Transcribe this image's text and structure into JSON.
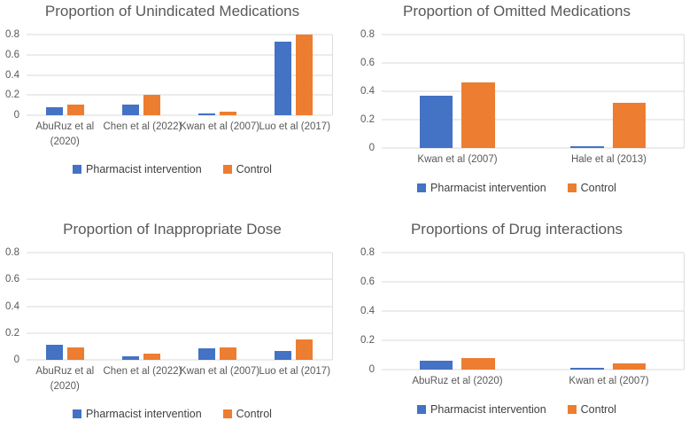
{
  "chart_data": [
    {
      "type": "bar",
      "title": "Proportion of Unindicated Medications",
      "categories": [
        "AbuRuz et al (2020)",
        "Chen et al (2022)",
        "Kwan et al (2007)",
        "Luo et al (2017)"
      ],
      "series": [
        {
          "name": "Pharmacist intervention",
          "color": "#4472C4",
          "values": [
            0.08,
            0.11,
            0.02,
            0.73
          ]
        },
        {
          "name": "Control",
          "color": "#ED7D31",
          "values": [
            0.11,
            0.2,
            0.04,
            0.8
          ]
        }
      ],
      "ylim": [
        0,
        0.8
      ],
      "yticks": [
        0,
        0.2,
        0.4,
        0.6,
        0.8
      ],
      "ytick_labels": [
        "0",
        "0.2",
        "0.4",
        "0.6",
        "0.8"
      ],
      "grid": true,
      "legend_position": "bottom"
    },
    {
      "type": "bar",
      "title": "Proportion of Omitted Medications",
      "categories": [
        "Kwan et al (2007)",
        "Hale et al (2013)"
      ],
      "series": [
        {
          "name": "Pharmacist intervention",
          "color": "#4472C4",
          "values": [
            0.37,
            0.01
          ]
        },
        {
          "name": "Control",
          "color": "#ED7D31",
          "values": [
            0.46,
            0.32
          ]
        }
      ],
      "ylim": [
        0,
        0.8
      ],
      "yticks": [
        0,
        0.2,
        0.4,
        0.6,
        0.8
      ],
      "ytick_labels": [
        "0",
        "0.2",
        "0.4",
        "0.6",
        "0.8"
      ],
      "grid": true,
      "legend_position": "bottom"
    },
    {
      "type": "bar",
      "title": "Proportion of Inappropriate Dose",
      "categories": [
        "AbuRuz et al (2020)",
        "Chen et al (2022)",
        "Kwan et al (2007)",
        "Luo et al (2017)"
      ],
      "series": [
        {
          "name": "Pharmacist intervention",
          "color": "#4472C4",
          "values": [
            0.11,
            0.03,
            0.085,
            0.07
          ]
        },
        {
          "name": "Control",
          "color": "#ED7D31",
          "values": [
            0.09,
            0.05,
            0.095,
            0.15
          ]
        }
      ],
      "ylim": [
        0,
        0.8
      ],
      "yticks": [
        0,
        0.2,
        0.4,
        0.6,
        0.8
      ],
      "ytick_labels": [
        "0",
        "0.2",
        "0.4",
        "0.6",
        "0.8"
      ],
      "grid": true,
      "legend_position": "bottom"
    },
    {
      "type": "bar",
      "title": "Proportions of Drug interactions",
      "categories": [
        "AbuRuz et al (2020)",
        "Kwan et al (2007)"
      ],
      "series": [
        {
          "name": "Pharmacist intervention",
          "color": "#4472C4",
          "values": [
            0.06,
            0.015
          ]
        },
        {
          "name": "Control",
          "color": "#ED7D31",
          "values": [
            0.08,
            0.04
          ]
        }
      ],
      "ylim": [
        0,
        0.8
      ],
      "yticks": [
        0,
        0.2,
        0.4,
        0.6,
        0.8
      ],
      "ytick_labels": [
        "0",
        "0.2",
        "0.4",
        "0.6",
        "0.8"
      ],
      "grid": true,
      "legend_position": "bottom"
    }
  ],
  "palette": {
    "pharmacist_intervention": "#4472C4",
    "control": "#ED7D31",
    "text_gray": "#595959",
    "gridline": "#D9D9D9"
  }
}
